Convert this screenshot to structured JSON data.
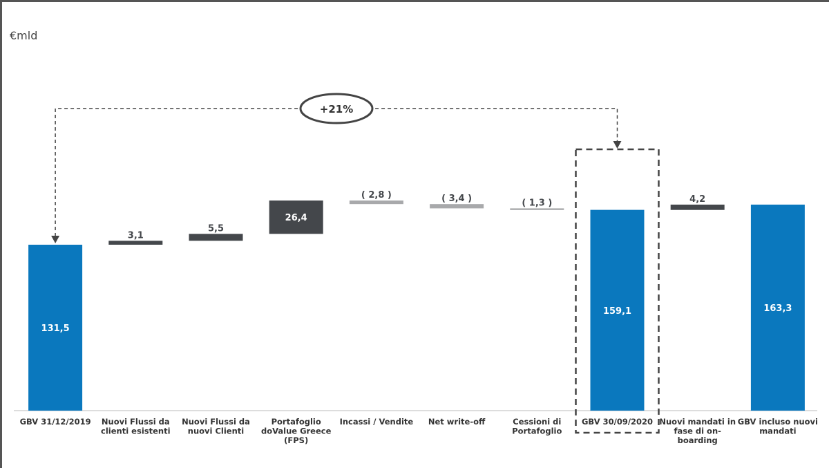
{
  "unit_label": "€mld",
  "chart_data": {
    "type": "bar",
    "subtype": "waterfall",
    "categories": [
      "GBV 31/12/2019",
      "Nuovi Flussi da clienti esistenti",
      "Nuovi Flussi da nuovi Clienti",
      "Portafoglio doValue Greece (FPS)",
      "Incassi / Vendite",
      "Net write-off",
      "Cessioni di Portafoglio",
      "GBV 30/09/2020",
      "Nuovi mandati in fase di on-boarding",
      "GBV incluso nuovi mandati"
    ],
    "category_lines": [
      [
        "GBV 31/12/2019"
      ],
      [
        "Nuovi Flussi da",
        "clienti esistenti"
      ],
      [
        "Nuovi Flussi da",
        "nuovi Clienti"
      ],
      [
        "Portafoglio",
        "doValue Greece",
        "(FPS)"
      ],
      [
        "Incassi / Vendite"
      ],
      [
        "Net write-off"
      ],
      [
        "Cessioni di",
        "Portafoglio"
      ],
      [
        "GBV 30/09/2020"
      ],
      [
        "Nuovi mandati in",
        "fase di on-",
        "boarding"
      ],
      [
        "GBV incluso nuovi",
        "mandati"
      ]
    ],
    "values": [
      131.5,
      3.1,
      5.5,
      26.4,
      -2.8,
      -3.4,
      -1.3,
      159.1,
      4.2,
      163.3
    ],
    "kinds": [
      "total",
      "increase",
      "increase",
      "increase",
      "decrease",
      "decrease",
      "decrease",
      "total",
      "increase",
      "total"
    ],
    "value_labels": [
      "131,5",
      "3,1",
      "5,5",
      "26,4",
      "( 2,8 )",
      "( 3,4 )",
      "( 1,3 )",
      "159,1",
      "4,2",
      "163,3"
    ],
    "ylabel": "€mld",
    "ylim": [
      0,
      175
    ],
    "grid": false,
    "colors": {
      "total": "#0a78be",
      "increase": "#44474b",
      "decrease": "#a8a9ab",
      "label_dark": "#44474b",
      "label_light": "#ffffff"
    },
    "annotation": {
      "text": "+21%",
      "from_category": "GBV 31/12/2019",
      "to_category": "GBV 30/09/2020"
    },
    "highlight_category": "GBV 30/09/2020"
  }
}
